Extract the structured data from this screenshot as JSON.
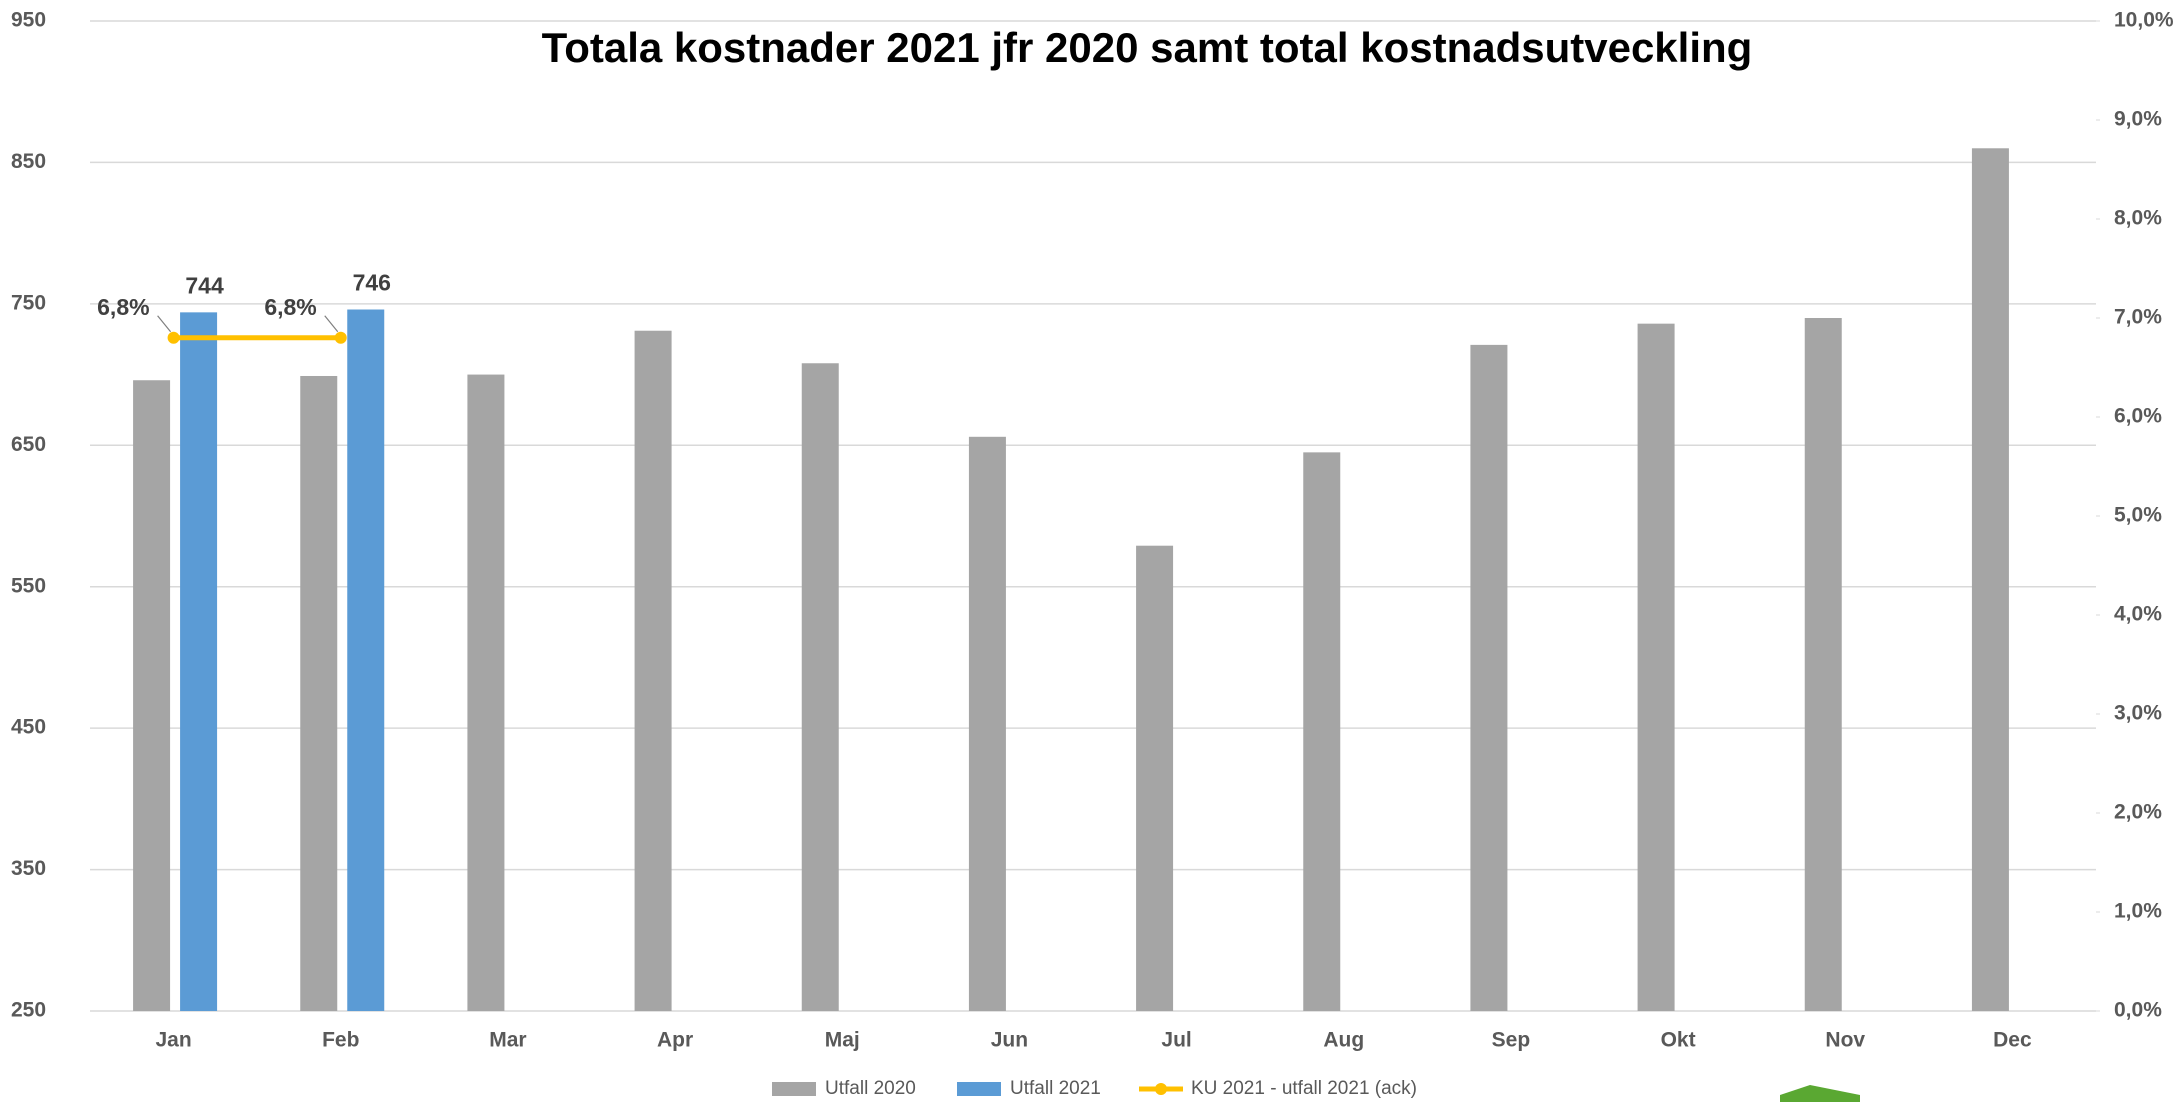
{
  "chart_data": {
    "type": "bar-line",
    "title": "Totala kostnader 2021 jfr 2020 samt total kostnadsutveckling",
    "categories": [
      "Jan",
      "Feb",
      "Mar",
      "Apr",
      "Maj",
      "Jun",
      "Jul",
      "Aug",
      "Sep",
      "Okt",
      "Nov",
      "Dec"
    ],
    "series": [
      {
        "name": "Utfall 2020",
        "type": "bar",
        "color": "#a5a5a5",
        "values": [
          696,
          699,
          700,
          731,
          708,
          656,
          579,
          645,
          721,
          736,
          740,
          860
        ]
      },
      {
        "name": "Utfall 2021",
        "type": "bar",
        "color": "#5b9bd5",
        "values": [
          744,
          746,
          null,
          null,
          null,
          null,
          null,
          null,
          null,
          null,
          null,
          null
        ],
        "show_labels": true
      },
      {
        "name": "KU 2021 - utfall 2021 (ack)",
        "type": "line",
        "axis": "y2",
        "color": "#ffc000",
        "values": [
          6.8,
          6.8,
          null,
          null,
          null,
          null,
          null,
          null,
          null,
          null,
          null,
          null
        ],
        "value_labels": [
          "6,8%",
          "6,8%",
          null,
          null,
          null,
          null,
          null,
          null,
          null,
          null,
          null,
          null
        ]
      }
    ],
    "ylim": [
      250,
      950
    ],
    "yticks": [
      250,
      350,
      450,
      550,
      650,
      750,
      850,
      950
    ],
    "y2lim": [
      0,
      10
    ],
    "y2ticks": [
      {
        "value": 0,
        "label": "0,0%"
      },
      {
        "value": 1,
        "label": "1,0%"
      },
      {
        "value": 2,
        "label": "2,0%"
      },
      {
        "value": 3,
        "label": "3,0%"
      },
      {
        "value": 4,
        "label": "4,0%"
      },
      {
        "value": 5,
        "label": "5,0%"
      },
      {
        "value": 6,
        "label": "6,0%"
      },
      {
        "value": 7,
        "label": "7,0%"
      },
      {
        "value": 8,
        "label": "8,0%"
      },
      {
        "value": 9,
        "label": "9,0%"
      },
      {
        "value": 10,
        "label": "10,0%"
      }
    ],
    "grid": true,
    "legend": "bottom"
  }
}
